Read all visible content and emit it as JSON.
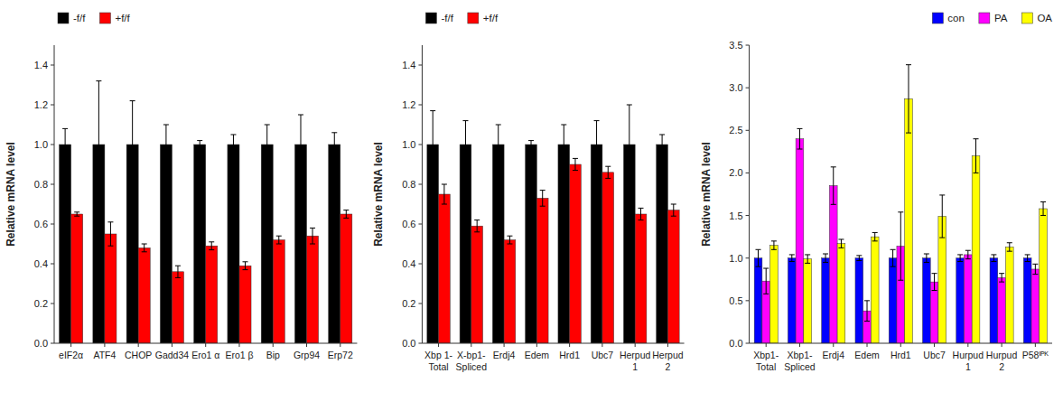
{
  "chart_data": [
    {
      "type": "bar",
      "categories": [
        "eIF2α",
        "ATF4",
        "CHOP",
        "Gadd34",
        "Ero1 α",
        "Ero1 β",
        "Bip",
        "Grp94",
        "Erp72"
      ],
      "series": [
        {
          "name": "-f/f",
          "color": "black",
          "values": [
            1.0,
            1.0,
            1.0,
            1.0,
            1.0,
            1.0,
            1.0,
            1.0,
            1.0
          ],
          "errors": [
            0.08,
            0.32,
            0.22,
            0.1,
            0.02,
            0.05,
            0.1,
            0.15,
            0.06
          ]
        },
        {
          "name": "+f/f",
          "color": "red",
          "values": [
            0.65,
            0.55,
            0.48,
            0.36,
            0.49,
            0.39,
            0.52,
            0.54,
            0.65
          ],
          "errors": [
            0.01,
            0.06,
            0.02,
            0.03,
            0.02,
            0.02,
            0.02,
            0.04,
            0.02
          ]
        }
      ],
      "ylabel": "Relative mRNA level",
      "ylim": [
        0,
        1.5
      ],
      "yticks": [
        {
          "value": 0,
          "label": "0.0"
        },
        0.2,
        0.4,
        0.6,
        0.8,
        {
          "value": 1,
          "label": "1.0"
        },
        1.2,
        1.4
      ],
      "legend": "upper left",
      "grid": false
    },
    {
      "type": "bar",
      "categories": [
        "Xbp 1-\nTotal",
        "X-bp1-\nSpliced",
        "Erdj4",
        "Edem",
        "Hrd1",
        "Ubc7",
        "Herpud\n1",
        "Herpud\n2"
      ],
      "series": [
        {
          "name": "-f/f",
          "color": "black",
          "values": [
            1.0,
            1.0,
            1.0,
            1.0,
            1.0,
            1.0,
            1.0,
            1.0
          ],
          "errors": [
            0.17,
            0.12,
            0.1,
            0.02,
            0.1,
            0.12,
            0.2,
            0.05
          ]
        },
        {
          "name": "+f/f",
          "color": "red",
          "values": [
            0.75,
            0.59,
            0.52,
            0.73,
            0.9,
            0.86,
            0.65,
            0.67
          ],
          "errors": [
            0.05,
            0.03,
            0.02,
            0.04,
            0.03,
            0.03,
            0.03,
            0.03
          ]
        }
      ],
      "ylabel": "Relative mRNA level",
      "ylim": [
        0,
        1.5
      ],
      "yticks": [
        {
          "value": 0,
          "label": "0.0"
        },
        0.2,
        0.4,
        0.6,
        0.8,
        {
          "value": 1,
          "label": "1.0"
        },
        1.2,
        1.4
      ],
      "legend": "upper left",
      "grid": false
    },
    {
      "type": "bar",
      "categories": [
        "Xbp1-\nTotal",
        "Xbp1-\nSpliced",
        "Erdj4",
        "Edem",
        "Hrd1",
        "Ubc7",
        "Hurpud\n1",
        "Hurpud\n2",
        "P58ᴵᴾᴷ"
      ],
      "series": [
        {
          "name": "con",
          "color": "blue",
          "values": [
            1.0,
            1.0,
            1.0,
            1.0,
            1.0,
            1.0,
            1.0,
            1.0,
            1.0
          ],
          "errors": [
            0.1,
            0.04,
            0.05,
            0.03,
            0.1,
            0.05,
            0.04,
            0.04,
            0.04
          ]
        },
        {
          "name": "PA",
          "color": "magenta",
          "values": [
            0.73,
            2.4,
            1.85,
            0.38,
            1.14,
            0.72,
            1.04,
            0.77,
            0.87
          ],
          "errors": [
            0.15,
            0.12,
            0.22,
            0.12,
            0.4,
            0.1,
            0.05,
            0.05,
            0.06
          ]
        },
        {
          "name": "OA",
          "color": "yellow",
          "values": [
            1.15,
            0.99,
            1.17,
            1.25,
            2.87,
            1.49,
            2.2,
            1.13,
            1.58
          ],
          "errors": [
            0.05,
            0.05,
            0.05,
            0.05,
            0.4,
            0.25,
            0.2,
            0.05,
            0.08
          ]
        }
      ],
      "ylabel": "Relative mRNA level",
      "ylim": [
        0,
        3.5
      ],
      "yticks": [
        {
          "value": 0,
          "label": "0.0"
        },
        0.5,
        {
          "value": 1,
          "label": "1.0"
        },
        1.5,
        {
          "value": 2,
          "label": "2.0"
        },
        2.5,
        {
          "value": 3,
          "label": "3.0"
        },
        3.5
      ],
      "legend": "upper right",
      "grid": false
    }
  ]
}
